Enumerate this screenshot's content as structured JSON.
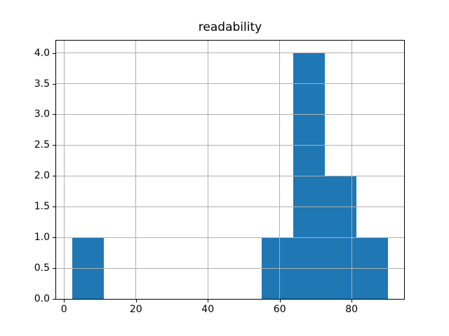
{
  "chart_data": {
    "type": "bar",
    "subtype": "histogram",
    "title": "readability",
    "xlabel": "",
    "ylabel": "",
    "bin_edges": [
      2.2,
      11.0,
      19.8,
      28.6,
      37.4,
      46.2,
      55.0,
      63.8,
      72.6,
      81.4,
      90.2
    ],
    "counts": [
      1,
      0,
      0,
      0,
      0,
      0,
      1,
      4,
      2,
      1
    ],
    "xticks": [
      0,
      20,
      40,
      60,
      80
    ],
    "yticks": [
      0.0,
      0.5,
      1.0,
      1.5,
      2.0,
      2.5,
      3.0,
      3.5,
      4.0
    ],
    "xlim": [
      -2.2,
      94.6
    ],
    "ylim": [
      0,
      4.2
    ],
    "bar_color": "#1f77b4",
    "grid_color": "#b0b0b0",
    "spine_color": "#000000",
    "background_color": "#ffffff",
    "grid": true,
    "grid_above_bars": true,
    "legend": null
  }
}
